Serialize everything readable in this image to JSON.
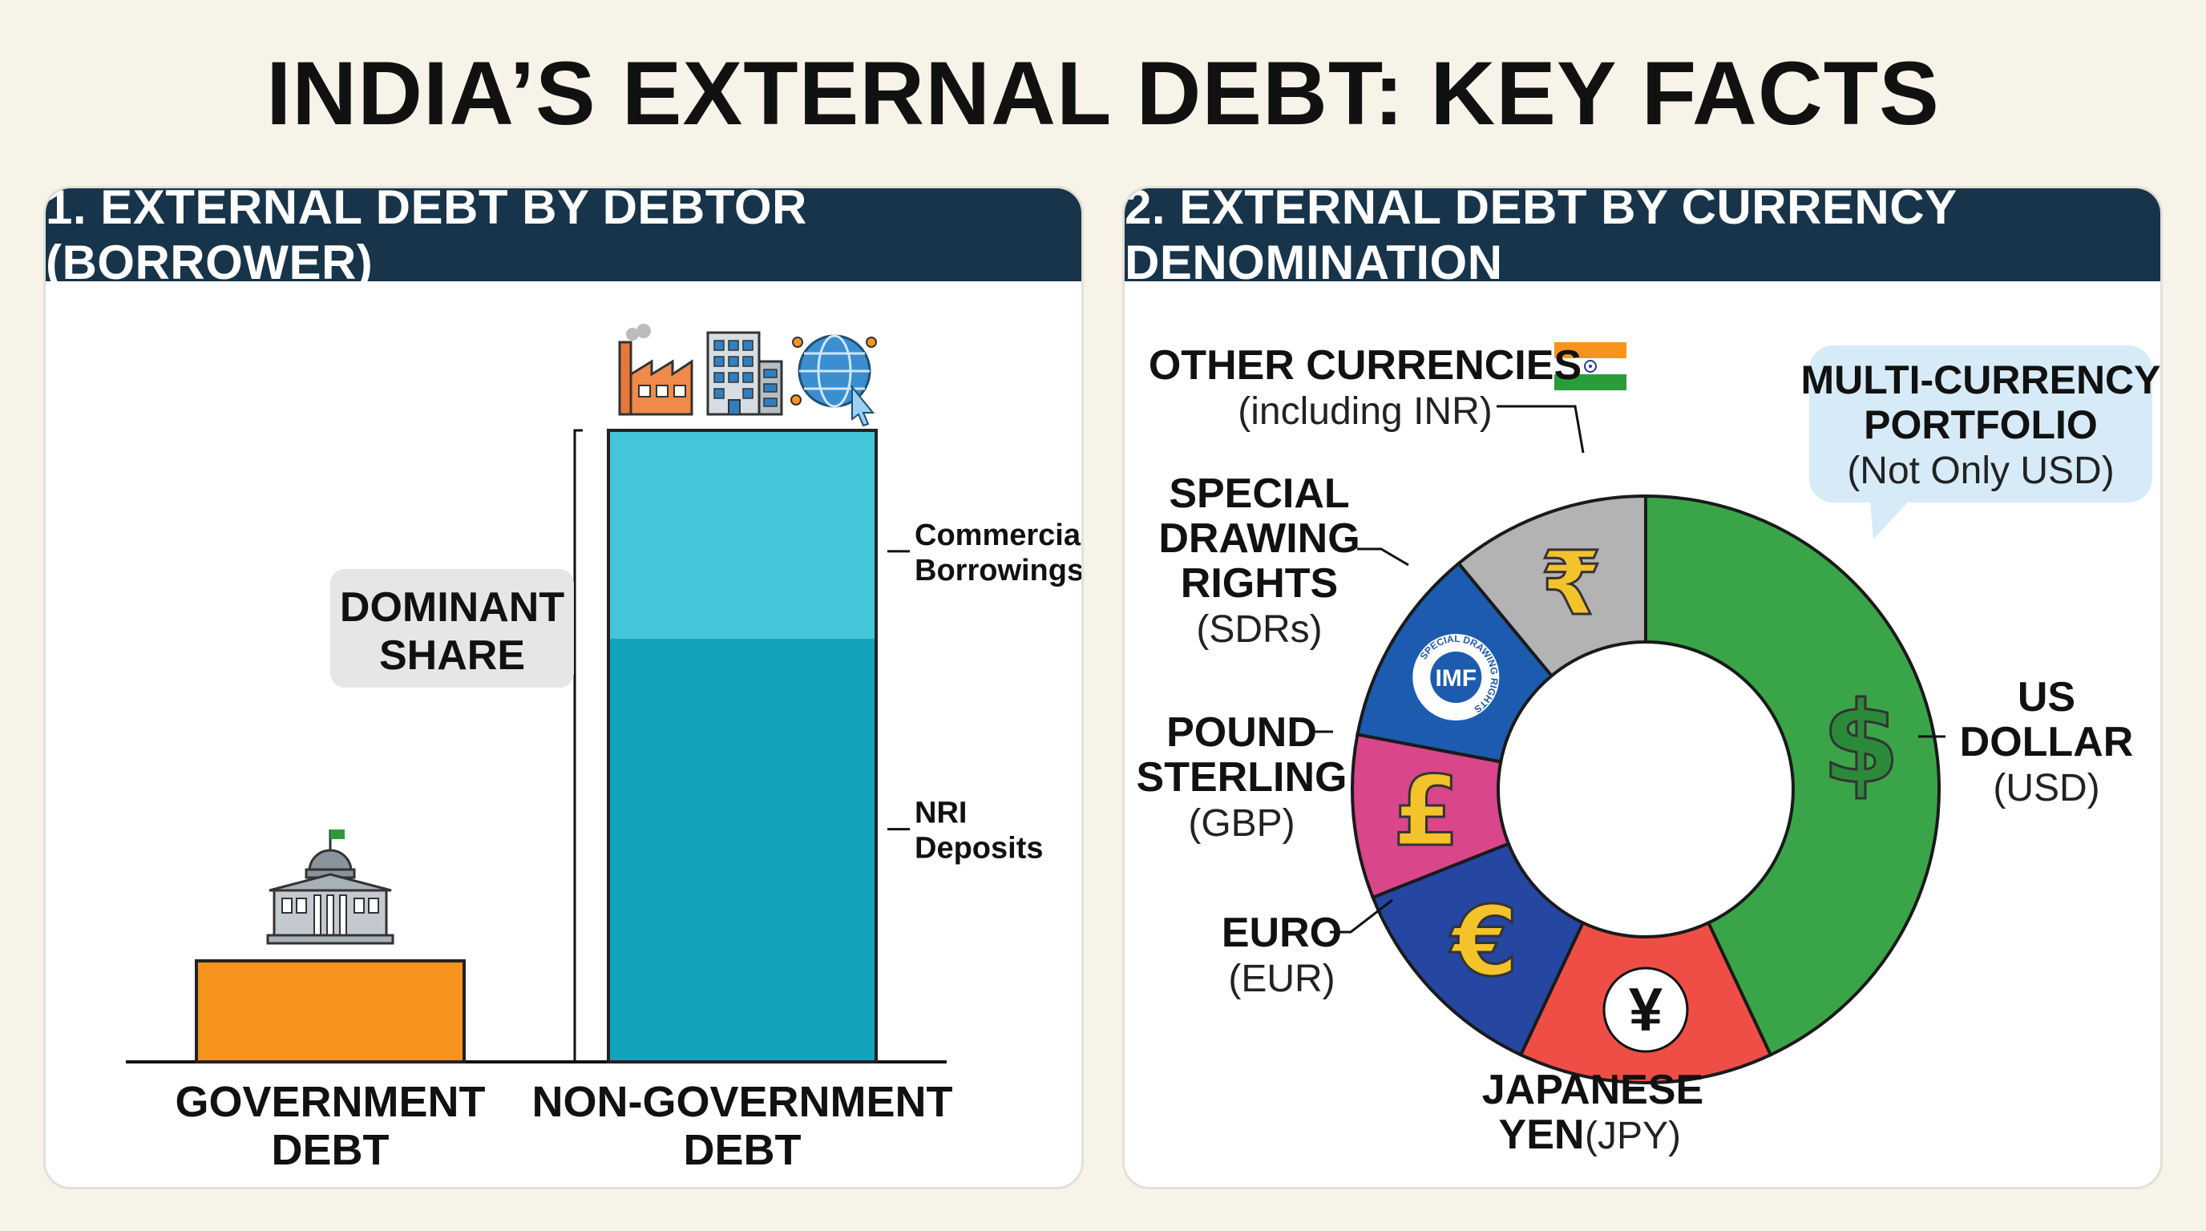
{
  "title": "INDIA’S EXTERNAL DEBT: KEY FACTS",
  "colors": {
    "background": "#f7f3e9",
    "header": "#17344a",
    "government": "#f7941d",
    "non_gov_top": "#44c5d9",
    "non_gov_bottom": "#12a3bd",
    "usd": "#3aa548",
    "jpy": "#ef4e46",
    "eur": "#2546a1",
    "gbp": "#d9468a",
    "sdr": "#1c5bb0",
    "other": "#b3b3b3"
  },
  "chart_data": [
    {
      "type": "bar",
      "title": "1. EXTERNAL DEBT BY DEBTOR (BORROWER)",
      "categories": [
        "GOVERNMENT DEBT",
        "NON-GOVERNMENT DEBT"
      ],
      "category_lines": [
        [
          "GOVERNMENT",
          "DEBT"
        ],
        [
          "NON-GOVERNMENT",
          "DEBT"
        ]
      ],
      "values": [
        16,
        100
      ],
      "stack_segments": [
        {
          "name": "Commercial Borrowings",
          "name_lines": [
            "Commercial",
            "Borrowings"
          ],
          "value": 33
        },
        {
          "name": "NRI Deposits",
          "name_lines": [
            "NRI",
            "Deposits"
          ],
          "value": 67
        }
      ],
      "annotation_lines": [
        "DOMINANT",
        "SHARE"
      ],
      "icons": [
        "government-building-icon",
        "factory-icon",
        "office-building-icon",
        "globe-icon"
      ],
      "ylim": [
        0,
        100
      ]
    },
    {
      "type": "pie",
      "title": "2. EXTERNAL DEBT BY CURRENCY DENOMINATION",
      "donut": true,
      "slices": [
        {
          "name": "US DOLLAR (USD)",
          "label_lines": [
            "US",
            "DOLLAR"
          ],
          "code": "(USD)",
          "value": 43,
          "symbol": "$",
          "color": "#3aa548"
        },
        {
          "name": "JAPANESE YEN (JPY)",
          "label_lines": [
            "JAPANESE",
            "YEN"
          ],
          "code": "(JPY)",
          "value": 14,
          "symbol": "¥",
          "color": "#ef4e46"
        },
        {
          "name": "EURO (EUR)",
          "label_lines": [
            "EURO"
          ],
          "code": "(EUR)",
          "value": 12,
          "symbol": "€",
          "color": "#2546a1"
        },
        {
          "name": "POUND STERLING (GBP)",
          "label_lines": [
            "POUND",
            "STERLING"
          ],
          "code": "(GBP)",
          "value": 9,
          "symbol": "£",
          "color": "#d9468a"
        },
        {
          "name": "SPECIAL DRAWING RIGHTS (SDRs)",
          "label_lines": [
            "SPECIAL",
            "DRAWING",
            "RIGHTS"
          ],
          "code": "(SDRs)",
          "value": 11,
          "symbol": "IMF",
          "color": "#1c5bb0"
        },
        {
          "name": "OTHER CURRENCIES (including INR)",
          "label_lines": [
            "OTHER CURRENCIES"
          ],
          "code": "(including INR)",
          "value": 11,
          "symbol": "₹",
          "color": "#b3b3b3"
        }
      ],
      "badge_ring_text": "SPECIAL DRAWING RIGHTS",
      "callout": {
        "lines": [
          "MULTI-CURRENCY",
          "PORTFOLIO"
        ],
        "sub": "(Not Only USD)"
      }
    }
  ]
}
